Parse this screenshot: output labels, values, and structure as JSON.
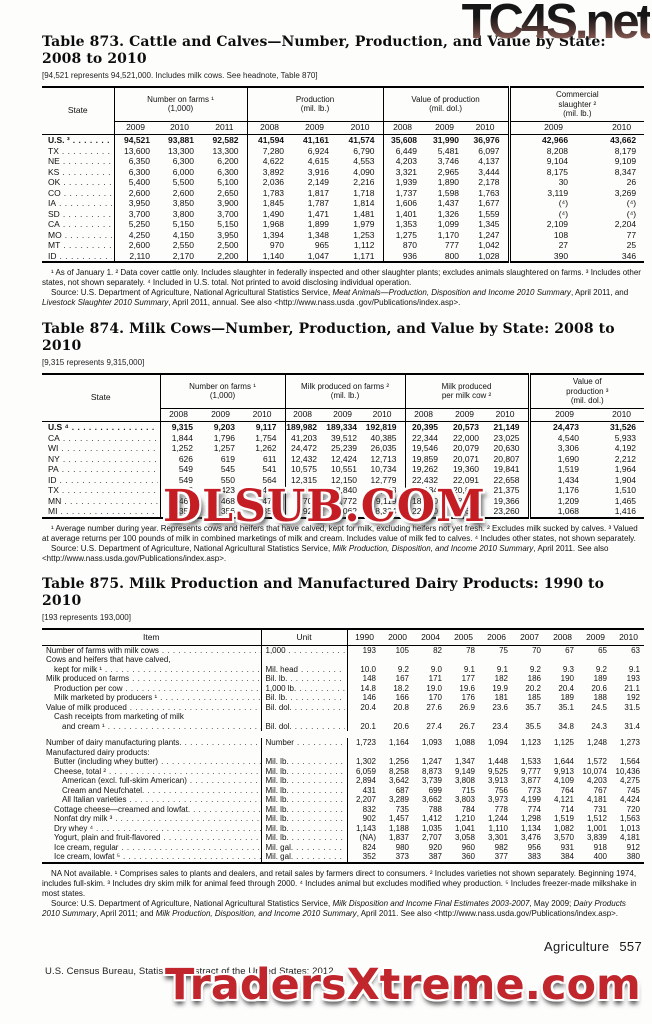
{
  "watermarks": {
    "top_text": "TC4S.net",
    "middle_text": "DLSUB.COM",
    "bottom_text": "TradersXtreme.com",
    "red": "#c41e24"
  },
  "footer": {
    "section_label": "Agriculture",
    "page_number": "557",
    "credit_line": "U.S. Census Bureau, Statistical Abstract of the United States: 2012"
  },
  "table873": {
    "title": "Table 873. Cattle and Calves—Number, Production, and Value by State:",
    "title_line2": "2008 to 2010",
    "headnote": "[94,521 represents 94,521,000. Includes milk cows. See headnote, Table 870]",
    "state_header": "State",
    "groups": [
      {
        "label": "Number on farms ¹\n(1,000)",
        "years": [
          "2009",
          "2010",
          "2011"
        ],
        "dbl": false
      },
      {
        "label": "Production\n(mil. lb.)",
        "years": [
          "2008",
          "2009",
          "2010"
        ],
        "dbl": false
      },
      {
        "label": "Value of production\n(mil. dol.)",
        "years": [
          "2008",
          "2009",
          "2010"
        ],
        "dbl": false
      },
      {
        "label": "Commercial\nslaughter ²\n(mil. lb.)",
        "years": [
          "2009",
          "2010"
        ],
        "dbl": true
      }
    ],
    "rows": [
      {
        "state": "U.S. ³",
        "bold": true,
        "values": [
          "94,521",
          "93,881",
          "92,582",
          "41,594",
          "41,161",
          "41,574",
          "35,608",
          "31,990",
          "36,976",
          "42,966",
          "43,662"
        ]
      },
      {
        "state": "TX",
        "values": [
          "13,600",
          "13,300",
          "13,300",
          "7,280",
          "6,924",
          "6,790",
          "6,449",
          "5,481",
          "6,097",
          "8,208",
          "8,179"
        ]
      },
      {
        "state": "NE",
        "values": [
          "6,350",
          "6,300",
          "6,200",
          "4,622",
          "4,615",
          "4,553",
          "4,203",
          "3,746",
          "4,137",
          "9,104",
          "9,109"
        ]
      },
      {
        "state": "KS",
        "values": [
          "6,300",
          "6,000",
          "6,300",
          "3,892",
          "3,916",
          "4,090",
          "3,321",
          "2,965",
          "3,444",
          "8,175",
          "8,347"
        ]
      },
      {
        "state": "OK",
        "values": [
          "5,400",
          "5,500",
          "5,100",
          "2,036",
          "2,149",
          "2,216",
          "1,939",
          "1,890",
          "2,178",
          "30",
          "26"
        ]
      },
      {
        "state": "CO",
        "values": [
          "2,600",
          "2,600",
          "2,650",
          "1,783",
          "1,817",
          "1,718",
          "1,737",
          "1,598",
          "1,763",
          "3,119",
          "3,269"
        ]
      },
      {
        "state": "IA",
        "values": [
          "3,950",
          "3,850",
          "3,900",
          "1,845",
          "1,787",
          "1,814",
          "1,606",
          "1,437",
          "1,677",
          "(⁴)",
          "(⁴)"
        ]
      },
      {
        "state": "SD",
        "values": [
          "3,700",
          "3,800",
          "3,700",
          "1,490",
          "1,471",
          "1,481",
          "1,401",
          "1,326",
          "1,559",
          "(⁴)",
          "(⁴)"
        ]
      },
      {
        "state": "CA",
        "values": [
          "5,250",
          "5,150",
          "5,150",
          "1,968",
          "1,899",
          "1,979",
          "1,353",
          "1,099",
          "1,345",
          "2,109",
          "2,204"
        ]
      },
      {
        "state": "MO",
        "values": [
          "4,250",
          "4,150",
          "3,950",
          "1,394",
          "1,348",
          "1,253",
          "1,275",
          "1,170",
          "1,247",
          "108",
          "77"
        ]
      },
      {
        "state": "MT",
        "values": [
          "2,600",
          "2,550",
          "2,500",
          "970",
          "965",
          "1,112",
          "870",
          "777",
          "1,042",
          "27",
          "25"
        ]
      },
      {
        "state": "ID",
        "values": [
          "2,110",
          "2,170",
          "2,200",
          "1,140",
          "1,047",
          "1,171",
          "936",
          "800",
          "1,028",
          "390",
          "346"
        ]
      }
    ],
    "footnote": "¹ As of January 1. ² Data cover cattle only. Includes slaughter in federally inspected and other slaughter plants; excludes animals slaughtered on farms. ³ Includes other states, not shown separately. ⁴ Included in U.S. total. Not printed to avoid disclosing individual operation.",
    "source": [
      {
        "t": "Source: U.S. Department of Agriculture, National Agricultural Statistics Service, "
      },
      {
        "t": "Meat Animals—Production, Disposition and Income 2010 Summary",
        "i": true
      },
      {
        "t": ", April 2011, and "
      },
      {
        "t": "Livestock Slaughter 2010 Summary",
        "i": true
      },
      {
        "t": ", April 2011, annual. See also <http://www.nass.usda .gov/Publications/index.asp>."
      }
    ]
  },
  "table874": {
    "title": "Table 874. Milk Cows—Number, Production, and Value by State: 2008 to 2010",
    "headnote": "[9,315 represents 9,315,000]",
    "state_header": "State",
    "groups": [
      {
        "label": "Number on farms ¹\n(1,000)",
        "years": [
          "2008",
          "2009",
          "2010"
        ],
        "dbl": false
      },
      {
        "label": "Milk produced on farms ²\n(mil. lb.)",
        "years": [
          "2008",
          "2009",
          "2010"
        ],
        "dbl": false
      },
      {
        "label": "Milk produced\nper milk cow ²",
        "years": [
          "2008",
          "2009",
          "2010"
        ],
        "dbl": false
      },
      {
        "label": "Value of\nproduction ³\n(mil. dol.)",
        "years": [
          "2009",
          "2010"
        ],
        "dbl": true
      }
    ],
    "rows": [
      {
        "state": "U.S ⁴",
        "bold": true,
        "values": [
          "9,315",
          "9,203",
          "9,117",
          "189,982",
          "189,334",
          "192,819",
          "20,395",
          "20,573",
          "21,149",
          "24,473",
          "31,526"
        ]
      },
      {
        "state": "CA",
        "values": [
          "1,844",
          "1,796",
          "1,754",
          "41,203",
          "39,512",
          "40,385",
          "22,344",
          "22,000",
          "23,025",
          "4,540",
          "5,933"
        ]
      },
      {
        "state": "WI",
        "values": [
          "1,252",
          "1,257",
          "1,262",
          "24,472",
          "25,239",
          "26,035",
          "19,546",
          "20,079",
          "20,630",
          "3,306",
          "4,192"
        ]
      },
      {
        "state": "NY",
        "values": [
          "626",
          "619",
          "611",
          "12,432",
          "12,424",
          "12,713",
          "19,859",
          "20,071",
          "20,807",
          "1,690",
          "2,212"
        ]
      },
      {
        "state": "PA",
        "values": [
          "549",
          "545",
          "541",
          "10,575",
          "10,551",
          "10,734",
          "19,262",
          "19,360",
          "19,841",
          "1,519",
          "1,964"
        ]
      },
      {
        "state": "ID",
        "values": [
          "549",
          "550",
          "564",
          "12,315",
          "12,150",
          "12,779",
          "22,432",
          "22,091",
          "22,658",
          "1,434",
          "1,904"
        ]
      },
      {
        "state": "TX",
        "values": [
          "418",
          "423",
          "413",
          "8,416",
          "8,840",
          "8,828",
          "20,134",
          "20,898",
          "21,375",
          "1,176",
          "1,510"
        ]
      },
      {
        "state": "MN",
        "values": [
          "465",
          "468",
          "471",
          "8,705",
          "8,772",
          "9,119",
          "18,720",
          "18,730",
          "19,366",
          "1,209",
          "1,465"
        ]
      },
      {
        "state": "MI",
        "values": [
          "355",
          "356",
          "357",
          "7,925",
          "8,062",
          "8,304",
          "22,330",
          "22,645",
          "23,260",
          "1,068",
          "1,416"
        ]
      }
    ],
    "footnote": "¹ Average number during year. Represents cows and heifers that have calved, kept for milk, excluding heifers not yet fresh. ² Excludes milk sucked by calves. ³ Valued at average returns per 100 pounds of milk in combined marketings of milk and cream. Includes value of milk fed to calves. ⁴ Includes other states, not shown separately.",
    "source": [
      {
        "t": "Source: U.S. Department of Agriculture, National Agricultural Statistics Service, "
      },
      {
        "t": "Milk Production, Disposition, and Income 2010 Summary",
        "i": true
      },
      {
        "t": ", April 2011. See also <http://www.nass.usda.gov/Publications/index.asp>."
      }
    ]
  },
  "table875": {
    "title": "Table 875. Milk Production and Manufactured Dairy Products: 1990 to 2010",
    "headnote": "[193 represents 193,000]",
    "item_header": "Item",
    "unit_header": "Unit",
    "years": [
      "1990",
      "2000",
      "2004",
      "2005",
      "2006",
      "2007",
      "2008",
      "2009",
      "2010"
    ],
    "rows": [
      {
        "label": "Number of farms with milk cows",
        "unit": "1,000",
        "values": [
          "193",
          "105",
          "82",
          "78",
          "75",
          "70",
          "67",
          "65",
          "63"
        ]
      },
      {
        "label": "Cows and heifers that have calved,",
        "label2": "kept for milk ¹",
        "indent2": 1,
        "unit": "Mil. head",
        "values": [
          "10.0",
          "9.2",
          "9.0",
          "9.1",
          "9.1",
          "9.2",
          "9.3",
          "9.2",
          "9.1"
        ]
      },
      {
        "label": "Milk produced on farms",
        "unit": "Bil. lb.",
        "values": [
          "148",
          "167",
          "171",
          "177",
          "182",
          "186",
          "190",
          "189",
          "193"
        ]
      },
      {
        "label": "Production per cow",
        "indent": 1,
        "unit": "1,000 lb.",
        "values": [
          "14.8",
          "18.2",
          "19.0",
          "19.6",
          "19.9",
          "20.2",
          "20.4",
          "20.6",
          "21.1"
        ]
      },
      {
        "label": "Milk marketed by producers ¹",
        "indent": 1,
        "unit": "Bil. lb.",
        "values": [
          "146",
          "166",
          "170",
          "176",
          "181",
          "185",
          "189",
          "188",
          "192"
        ]
      },
      {
        "label": "Value of milk produced",
        "unit": "Bil. dol.",
        "values": [
          "20.4",
          "20.8",
          "27.6",
          "26.9",
          "23.6",
          "35.7",
          "35.1",
          "24.5",
          "31.5"
        ]
      },
      {
        "label": "Cash receipts from marketing of milk",
        "indent": 1,
        "label2": "and cream ¹",
        "indent2": 2,
        "unit": "Bil. dol.",
        "values": [
          "20.1",
          "20.6",
          "27.4",
          "26.7",
          "23.4",
          "35.5",
          "34.8",
          "24.3",
          "31.4"
        ]
      },
      {
        "spacer": true
      },
      {
        "label": "Number of dairy manufacturing plants.",
        "unit": "Number",
        "values": [
          "1,723",
          "1,164",
          "1,093",
          "1,088",
          "1,094",
          "1,123",
          "1,125",
          "1,248",
          "1,273"
        ]
      },
      {
        "label": "Manufactured dairy products:",
        "heading": true
      },
      {
        "label": "Butter (including whey butter)",
        "indent": 1,
        "unit": "Mil. lb.",
        "values": [
          "1,302",
          "1,256",
          "1,247",
          "1,347",
          "1,448",
          "1,533",
          "1,644",
          "1,572",
          "1,564"
        ]
      },
      {
        "label": "Cheese, total ²",
        "indent": 1,
        "unit": "Mil. lb.",
        "values": [
          "6,059",
          "8,258",
          "8,873",
          "9,149",
          "9,525",
          "9,777",
          "9,913",
          "10,074",
          "10,436"
        ]
      },
      {
        "label": "American (excl. full-skim American)",
        "indent": 2,
        "unit": "Mil. lb.",
        "values": [
          "2,894",
          "3,642",
          "3,739",
          "3,808",
          "3,913",
          "3,877",
          "4,109",
          "4,203",
          "4,275"
        ]
      },
      {
        "label": "Cream and Neufchatel.",
        "indent": 2,
        "unit": "Mil. lb.",
        "values": [
          "431",
          "687",
          "699",
          "715",
          "756",
          "773",
          "764",
          "767",
          "745"
        ]
      },
      {
        "label": "All Italian varieties",
        "indent": 2,
        "unit": "Mil. lb.",
        "values": [
          "2,207",
          "3,289",
          "3,662",
          "3,803",
          "3,973",
          "4,199",
          "4,121",
          "4,181",
          "4,424"
        ]
      },
      {
        "label": "Cottage cheese—creamed and lowfat.",
        "indent": 1,
        "unit": "Mil. lb.",
        "values": [
          "832",
          "735",
          "788",
          "784",
          "778",
          "774",
          "714",
          "731",
          "720"
        ]
      },
      {
        "label": "Nonfat dry milk ³",
        "indent": 1,
        "unit": "Mil. lb.",
        "values": [
          "902",
          "1,457",
          "1,412",
          "1,210",
          "1,244",
          "1,298",
          "1,519",
          "1,512",
          "1,563"
        ]
      },
      {
        "label": "Dry whey ⁴",
        "indent": 1,
        "unit": "Mil. lb.",
        "values": [
          "1,143",
          "1,188",
          "1,035",
          "1,041",
          "1,110",
          "1,134",
          "1,082",
          "1,001",
          "1,013"
        ]
      },
      {
        "label": "Yogurt, plain and fruit-flavored",
        "indent": 1,
        "unit": "Mil. lb.",
        "values": [
          "(NA)",
          "1,837",
          "2,707",
          "3,058",
          "3,301",
          "3,476",
          "3,570",
          "3,839",
          "4,181"
        ]
      },
      {
        "label": "Ice cream, regular",
        "indent": 1,
        "unit": "Mil. gal.",
        "values": [
          "824",
          "980",
          "920",
          "960",
          "982",
          "956",
          "931",
          "918",
          "912"
        ]
      },
      {
        "label": "Ice cream, lowfat ⁵",
        "indent": 1,
        "unit": "Mil. gal.",
        "values": [
          "352",
          "373",
          "387",
          "360",
          "377",
          "383",
          "384",
          "400",
          "380"
        ]
      }
    ],
    "footnote": "NA Not available. ¹ Comprises sales to plants and dealers, and retail sales by farmers direct to consumers. ² Includes varieties not shown separately. Beginning 1974, includes full-skim. ³ Includes dry skim milk for animal feed through 2000. ⁴ Includes animal but excludes modified whey production. ⁵ Includes freezer-made milkshake in most states.",
    "source": [
      {
        "t": "Source: U.S. Department of Agriculture, National Agricultural Statistics Service, "
      },
      {
        "t": "Milk Disposition and Income Final Estimates 2003-2007",
        "i": true
      },
      {
        "t": ", May 2009; "
      },
      {
        "t": "Dairy Products 2010 Summary",
        "i": true
      },
      {
        "t": ", April 2011; and "
      },
      {
        "t": "Milk Production, Disposition, and Income 2010 Summary",
        "i": true
      },
      {
        "t": ", April 2011. See also <http://www.nass.usda.gov/Publications/index.asp>."
      }
    ]
  }
}
